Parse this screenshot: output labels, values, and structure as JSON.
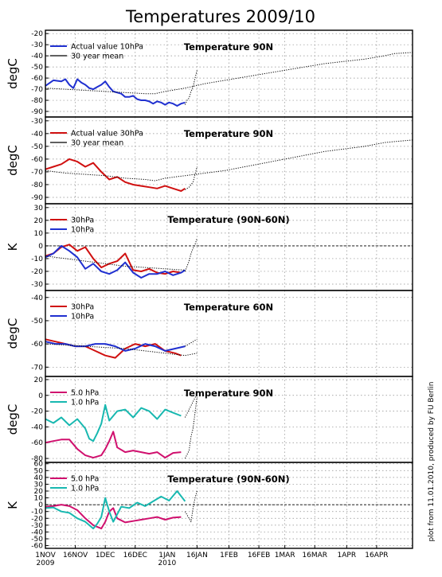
{
  "figure_title": "Temperatures 2009/10",
  "side_note": "plot from 11.01.2010, produced by FU Berlin",
  "colors": {
    "blue": "#2030d0",
    "red": "#d01010",
    "magenta": "#d0106e",
    "cyan": "#18b8b0",
    "black": "#000000",
    "grid": "#8c8c8c"
  },
  "x_axis": {
    "labels": [
      "1NOV",
      "16NOV",
      "1DEC",
      "16DEC",
      "1JAN",
      "16JAN",
      "1FEB",
      "16FEB",
      "1MAR",
      "16MAR",
      "1APR",
      "16APR"
    ],
    "label_days": [
      0,
      15,
      30,
      45,
      61,
      76,
      92,
      107,
      120,
      135,
      151,
      166
    ],
    "year_labels": [
      {
        "text": "2009",
        "day": 0
      },
      {
        "text": "2010",
        "day": 61
      }
    ],
    "range_days": [
      0,
      184
    ]
  },
  "chart_data": [
    {
      "type": "line",
      "title": "Temperature 90N",
      "ylabel": "degC",
      "ylim": [
        -95,
        -17
      ],
      "yticks": [
        -90,
        -80,
        -70,
        -60,
        -50,
        -40,
        -30,
        -20
      ],
      "grid": true,
      "legend": "top-left",
      "series": [
        {
          "name": "Actual value 10hPa",
          "color": "blue",
          "style": "solid",
          "x": [
            0,
            4,
            8,
            10,
            12,
            14,
            16,
            18,
            20,
            22,
            24,
            26,
            28,
            30,
            32,
            34,
            36,
            38,
            40,
            42,
            44,
            46,
            48,
            50,
            52,
            54,
            56,
            58,
            60,
            62,
            64,
            66,
            68,
            70
          ],
          "y": [
            -67,
            -62,
            -63,
            -61,
            -66,
            -69,
            -61,
            -64,
            -66,
            -69,
            -70,
            -68,
            -66,
            -63,
            -68,
            -72,
            -73,
            -74,
            -77,
            -77,
            -76,
            -79,
            -80,
            -80,
            -81,
            -83,
            -81,
            -82,
            -84,
            -82,
            -83,
            -85,
            -83,
            -82
          ]
        },
        {
          "name": "",
          "color": "black",
          "style": "dotted",
          "x": [
            70,
            71,
            72,
            73,
            74,
            75,
            76
          ],
          "y": [
            -84,
            -80,
            -78,
            -72,
            -68,
            -60,
            -53
          ]
        },
        {
          "name": "30 year mean",
          "color": "black",
          "style": "dotted",
          "x": [
            0,
            10,
            20,
            30,
            40,
            50,
            55,
            60,
            70,
            80,
            90,
            100,
            110,
            120,
            130,
            140,
            150,
            160,
            170,
            175,
            184
          ],
          "y": [
            -69,
            -70,
            -71,
            -72,
            -73,
            -74,
            -74,
            -72,
            -69,
            -65,
            -62,
            -59,
            -56,
            -53,
            -50,
            -47,
            -45,
            -43,
            -40,
            -38,
            -37
          ]
        }
      ]
    },
    {
      "type": "line",
      "title": "Temperature 90N",
      "ylabel": "degC",
      "ylim": [
        -95,
        -27
      ],
      "yticks": [
        -90,
        -80,
        -70,
        -60,
        -50,
        -40,
        -30
      ],
      "grid": true,
      "legend": "top-left",
      "series": [
        {
          "name": "Actual value 30hPa",
          "color": "red",
          "style": "solid",
          "x": [
            0,
            4,
            8,
            12,
            16,
            20,
            24,
            28,
            32,
            36,
            40,
            44,
            48,
            52,
            56,
            60,
            64,
            66,
            68,
            70
          ],
          "y": [
            -68,
            -66,
            -64,
            -60,
            -62,
            -66,
            -63,
            -70,
            -76,
            -74,
            -78,
            -80,
            -81,
            -82,
            -83,
            -81,
            -83,
            -84,
            -85,
            -83
          ]
        },
        {
          "name": "",
          "color": "black",
          "style": "dotted",
          "x": [
            70,
            71,
            72,
            73,
            74,
            75,
            76
          ],
          "y": [
            -84,
            -83,
            -82,
            -80,
            -78,
            -72,
            -66
          ]
        },
        {
          "name": "30 year mean",
          "color": "black",
          "style": "dotted",
          "x": [
            0,
            10,
            20,
            30,
            40,
            50,
            55,
            60,
            70,
            80,
            90,
            100,
            110,
            120,
            130,
            140,
            150,
            160,
            170,
            184
          ],
          "y": [
            -69,
            -71,
            -72,
            -73,
            -75,
            -76,
            -77,
            -75,
            -73,
            -71,
            -69,
            -66,
            -63,
            -60,
            -57,
            -54,
            -52,
            -50,
            -47,
            -45
          ]
        }
      ]
    },
    {
      "type": "line",
      "title": "Temperature (90N-60N)",
      "ylabel": "K",
      "ylim": [
        -35,
        33
      ],
      "yticks": [
        -30,
        -20,
        -10,
        0,
        10,
        20,
        30
      ],
      "grid": true,
      "zero_line": true,
      "legend": "top-left",
      "series": [
        {
          "name": "30hPa",
          "color": "red",
          "style": "solid",
          "x": [
            0,
            4,
            8,
            12,
            16,
            20,
            24,
            28,
            32,
            36,
            40,
            44,
            48,
            52,
            56,
            60,
            64,
            68
          ],
          "y": [
            -8,
            -6,
            -1,
            1,
            -4,
            -1,
            -10,
            -17,
            -14,
            -12,
            -6,
            -19,
            -20,
            -18,
            -21,
            -22,
            -20,
            -21
          ]
        },
        {
          "name": "10hPa",
          "color": "blue",
          "style": "solid",
          "x": [
            0,
            4,
            8,
            12,
            16,
            20,
            24,
            28,
            32,
            36,
            40,
            44,
            48,
            52,
            56,
            60,
            64,
            68,
            70
          ],
          "y": [
            -9,
            -6,
            0,
            -4,
            -9,
            -18,
            -14,
            -20,
            -22,
            -19,
            -13,
            -21,
            -25,
            -22,
            -22,
            -20,
            -23,
            -21,
            -19
          ]
        },
        {
          "name": "",
          "color": "black",
          "style": "dotted",
          "x": [
            70,
            71,
            72,
            73,
            74,
            75,
            76
          ],
          "y": [
            -20,
            -16,
            -12,
            -6,
            -2,
            1,
            6
          ]
        },
        {
          "name": "",
          "color": "black",
          "style": "dotted",
          "x": [
            0,
            10,
            20,
            30,
            40,
            50,
            60,
            70
          ],
          "y": [
            -8,
            -10,
            -12,
            -14,
            -16,
            -17,
            -18,
            -19
          ]
        }
      ]
    },
    {
      "type": "line",
      "title": "Temperature 60N",
      "ylabel": "degC",
      "ylim": [
        -74,
        -37
      ],
      "yticks": [
        -70,
        -60,
        -50,
        -40
      ],
      "grid": true,
      "legend": "top-left",
      "series": [
        {
          "name": "30hPa",
          "color": "red",
          "style": "solid",
          "x": [
            0,
            5,
            10,
            15,
            20,
            25,
            30,
            35,
            40,
            45,
            50,
            55,
            60,
            65,
            68
          ],
          "y": [
            -58,
            -59,
            -60,
            -61,
            -61,
            -63,
            -65,
            -66,
            -62,
            -60,
            -61,
            -60,
            -63,
            -64,
            -65
          ]
        },
        {
          "name": "10hPa",
          "color": "blue",
          "style": "solid",
          "x": [
            0,
            5,
            10,
            15,
            20,
            25,
            30,
            35,
            40,
            45,
            50,
            55,
            60,
            65,
            70
          ],
          "y": [
            -59,
            -60,
            -60,
            -61,
            -61,
            -60,
            -60,
            -61,
            -63,
            -62,
            -60,
            -61,
            -63,
            -62,
            -61
          ]
        },
        {
          "name": "",
          "color": "black",
          "style": "dotted",
          "x": [
            70,
            72,
            74,
            76
          ],
          "y": [
            -61,
            -60,
            -59,
            -58
          ]
        },
        {
          "name": "",
          "color": "black",
          "style": "dotted",
          "x": [
            0,
            20,
            40,
            60,
            70,
            76
          ],
          "y": [
            -60,
            -61,
            -62,
            -64,
            -65,
            -64
          ]
        }
      ]
    },
    {
      "type": "line",
      "title": "Temperature 90N",
      "ylabel": "degC",
      "ylim": [
        -85,
        24
      ],
      "yticks": [
        -80,
        -60,
        -40,
        -20,
        0,
        20
      ],
      "grid": true,
      "legend": "top-left",
      "series": [
        {
          "name": "5.0 hPa",
          "color": "magenta",
          "style": "solid",
          "x": [
            0,
            4,
            8,
            12,
            16,
            20,
            24,
            28,
            30,
            32,
            34,
            36,
            40,
            44,
            48,
            52,
            56,
            60,
            64,
            68
          ],
          "y": [
            -60,
            -58,
            -56,
            -56,
            -68,
            -76,
            -79,
            -76,
            -68,
            -58,
            -46,
            -66,
            -72,
            -70,
            -72,
            -74,
            -72,
            -79,
            -73,
            -72
          ]
        },
        {
          "name": "1.0 hPa",
          "color": "cyan",
          "style": "solid",
          "x": [
            0,
            4,
            8,
            12,
            16,
            20,
            22,
            24,
            26,
            28,
            30,
            32,
            36,
            40,
            44,
            48,
            52,
            56,
            60,
            64,
            68
          ],
          "y": [
            -30,
            -35,
            -28,
            -38,
            -30,
            -42,
            -55,
            -58,
            -48,
            -36,
            -12,
            -32,
            -20,
            -18,
            -28,
            -16,
            -20,
            -30,
            -18,
            -22,
            -26
          ]
        },
        {
          "name": "",
          "color": "black",
          "style": "dotted",
          "x": [
            70,
            72,
            73,
            74,
            75,
            76
          ],
          "y": [
            -80,
            -70,
            -52,
            -42,
            -22,
            -2
          ]
        },
        {
          "name": "",
          "color": "black",
          "style": "dotted",
          "x": [
            70,
            72,
            74,
            76
          ],
          "y": [
            -28,
            -18,
            -8,
            2
          ]
        }
      ]
    },
    {
      "type": "line",
      "title": "Temperature (90N-60N)",
      "ylabel": "K",
      "ylim": [
        -64,
        62
      ],
      "yticks": [
        -60,
        -50,
        -40,
        -30,
        -20,
        -10,
        0,
        10,
        20,
        30,
        40,
        50,
        60
      ],
      "grid": true,
      "zero_line": true,
      "legend": "top-left",
      "series": [
        {
          "name": "5.0 hPa",
          "color": "magenta",
          "style": "solid",
          "x": [
            0,
            4,
            8,
            12,
            16,
            20,
            24,
            28,
            30,
            32,
            34,
            36,
            40,
            44,
            48,
            52,
            56,
            60,
            64,
            68
          ],
          "y": [
            -3,
            -2,
            0,
            -2,
            -8,
            -20,
            -30,
            -35,
            -25,
            -10,
            -5,
            -20,
            -26,
            -24,
            -22,
            -20,
            -18,
            -22,
            -19,
            -18
          ]
        },
        {
          "name": "1.0 hPa",
          "color": "cyan",
          "style": "solid",
          "x": [
            0,
            4,
            8,
            12,
            16,
            20,
            24,
            26,
            28,
            30,
            32,
            34,
            38,
            42,
            46,
            50,
            54,
            58,
            62,
            66,
            70
          ],
          "y": [
            -5,
            -4,
            -10,
            -12,
            -20,
            -25,
            -35,
            -28,
            -18,
            10,
            -10,
            -25,
            -3,
            -5,
            3,
            -2,
            5,
            12,
            6,
            20,
            5
          ]
        },
        {
          "name": "",
          "color": "black",
          "style": "dotted",
          "x": [
            70,
            72,
            73,
            74,
            75,
            76
          ],
          "y": [
            -10,
            -20,
            -25,
            -5,
            10,
            20
          ]
        }
      ]
    }
  ]
}
